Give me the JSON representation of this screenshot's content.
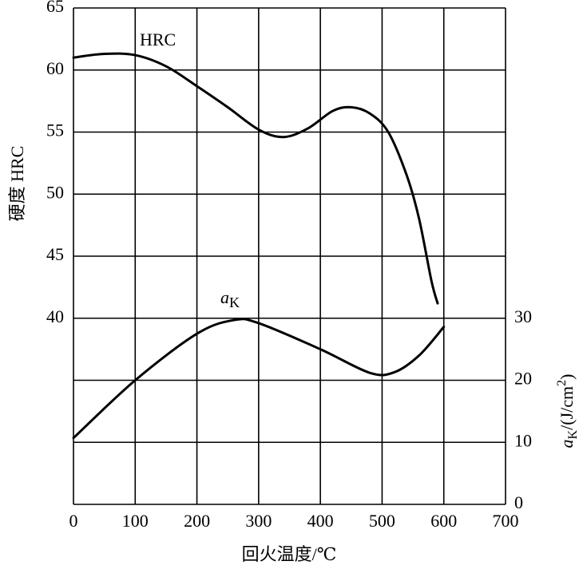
{
  "chart_data": {
    "type": "line",
    "x_label": "回火温度/℃",
    "y_label": "硬度  HRC",
    "y2_label_parts": [
      "a",
      "K",
      "/(J/cm",
      "2",
      ")"
    ],
    "xlim": [
      0,
      700
    ],
    "xticks": [
      0,
      100,
      200,
      300,
      400,
      500,
      600,
      700
    ],
    "ylim": [
      25,
      65
    ],
    "yticks": [
      40,
      45,
      50,
      55,
      60,
      65
    ],
    "y2lim": [
      0,
      80
    ],
    "y2ticks": [
      0,
      10,
      20,
      30
    ],
    "grid": true,
    "series": [
      {
        "name": "HRC",
        "color": "#000000",
        "x": [
          0,
          50,
          100,
          150,
          200,
          250,
          300,
          340,
          380,
          420,
          450,
          480,
          510,
          540,
          560,
          580,
          590
        ],
        "values": [
          61,
          61.3,
          61.2,
          60.3,
          58.7,
          57,
          55.2,
          54.6,
          55.3,
          56.7,
          57,
          56.5,
          55,
          51.5,
          48,
          43,
          41.2
        ]
      },
      {
        "name_parts": [
          "a",
          "K"
        ],
        "color": "#000000",
        "axis": "y2",
        "x": [
          0,
          100,
          200,
          260,
          300,
          400,
          480,
          520,
          560,
          600
        ],
        "values": [
          10.7,
          20,
          27.5,
          29.7,
          29.2,
          25,
          21.2,
          21.3,
          24,
          28.6
        ]
      }
    ]
  }
}
